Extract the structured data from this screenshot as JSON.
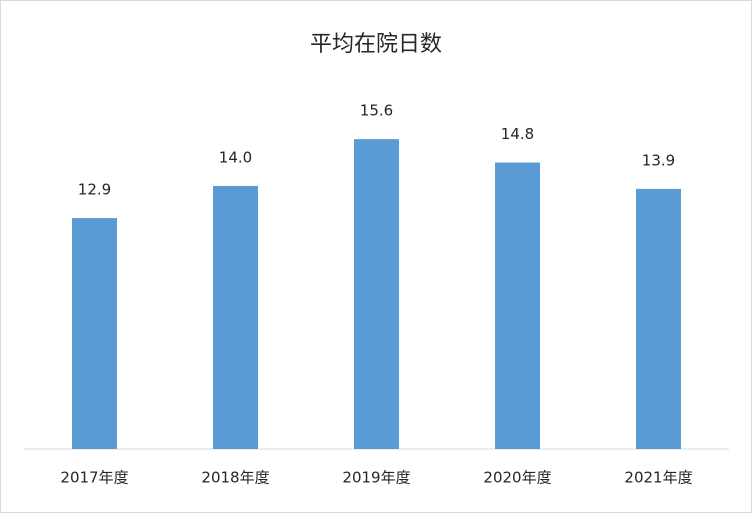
{
  "chart_data": {
    "type": "bar",
    "title": "平均在院日数",
    "categories": [
      "2017年度",
      "2018年度",
      "2019年度",
      "2020年度",
      "2021年度"
    ],
    "values": [
      12.9,
      14.0,
      15.6,
      14.8,
      13.9
    ],
    "value_labels": [
      "12.9",
      "14.0",
      "15.6",
      "14.8",
      "13.9"
    ],
    "color": "#5b9bd5",
    "ylim": [
      5,
      18
    ]
  }
}
